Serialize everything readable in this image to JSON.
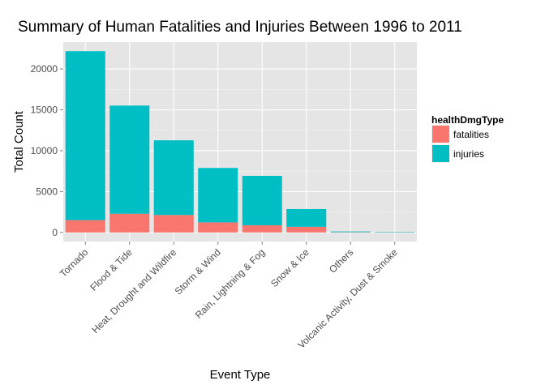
{
  "chart_data": {
    "type": "bar",
    "stacked": true,
    "title": "Summary of Human Fatalities and Injuries Between 1996 to 2011",
    "xlabel": "Event Type",
    "ylabel": "Total Count",
    "categories": [
      "Tornado",
      "Flood & Tide",
      "Heat, Drought and Wildfire",
      "Storm & Wind",
      "Rain, Lightning & Fog",
      "Snow & Ice",
      "Others",
      "Volcanic Activity, Dust & Smoke"
    ],
    "series": [
      {
        "name": "fatalities",
        "color": "#F8766D",
        "values": [
          1510,
          2290,
          2140,
          1230,
          880,
          690,
          30,
          20
        ]
      },
      {
        "name": "injuries",
        "color": "#00BFC4",
        "values": [
          20660,
          13230,
          9130,
          6660,
          6040,
          2170,
          90,
          50
        ]
      }
    ],
    "yticks": [
      0,
      5000,
      10000,
      15000,
      20000
    ],
    "ylim": [
      -1108,
      23280
    ],
    "grid": true,
    "legend": {
      "title": "healthDmgType",
      "position": "right"
    },
    "colors": {
      "panel_background": "#E5E5E5",
      "grid_major": "#FFFFFF",
      "grid_minor": "#F2F2F2"
    }
  }
}
